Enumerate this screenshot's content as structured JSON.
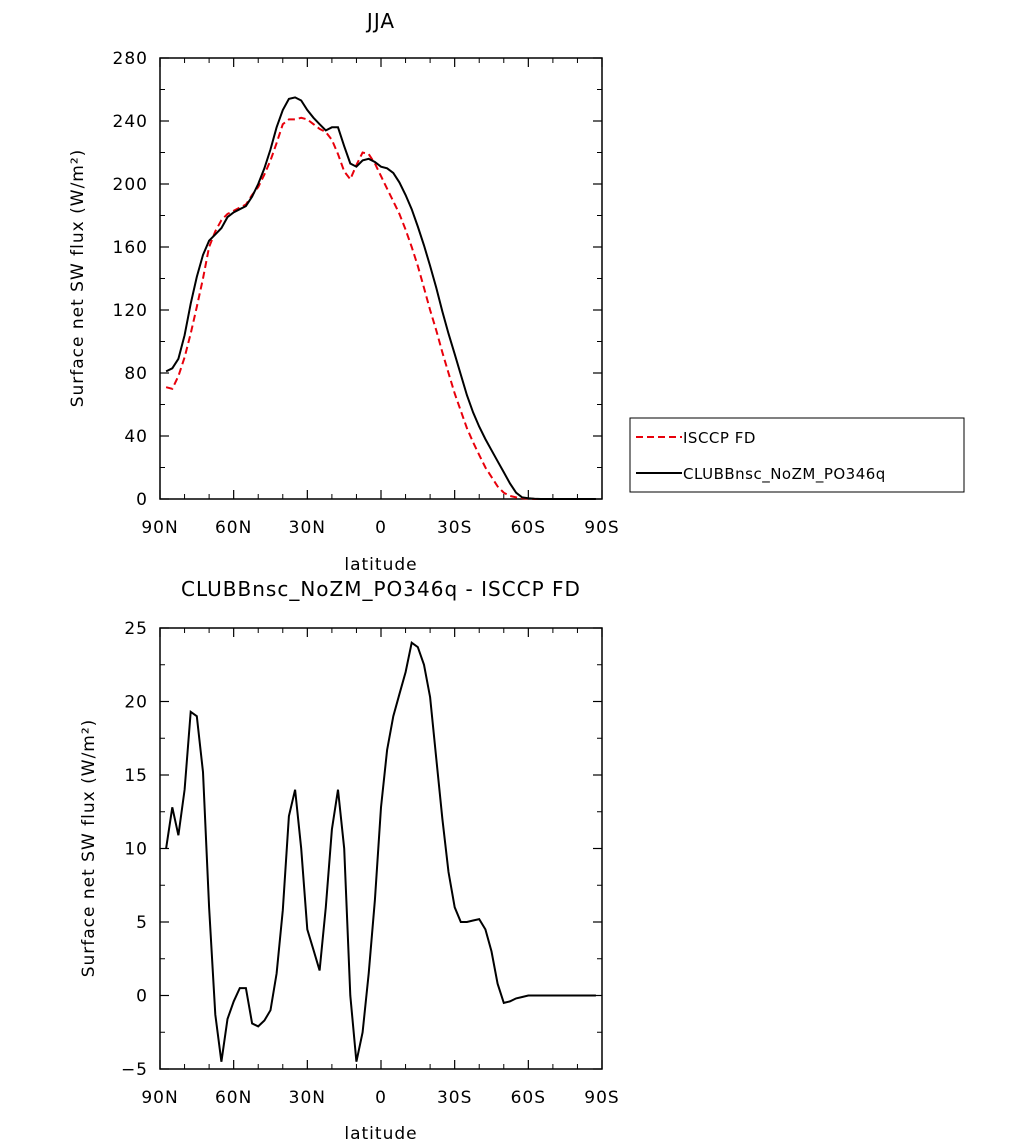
{
  "chart_data": [
    {
      "type": "line",
      "title": "JJA",
      "xlabel": "latitude",
      "ylabel": "Surface net SW flux (W/m²)",
      "xlim": [
        -90,
        90
      ],
      "ylim": [
        0,
        280
      ],
      "xticks": [
        -90,
        -60,
        -30,
        0,
        30,
        60,
        90
      ],
      "xtick_labels": [
        "90N",
        "60N",
        "30N",
        "0",
        "30S",
        "60S",
        "90S"
      ],
      "yticks": [
        0,
        40,
        80,
        120,
        160,
        200,
        240,
        280
      ],
      "ytick_labels": [
        "0",
        "40",
        "80",
        "120",
        "160",
        "200",
        "240",
        "280"
      ],
      "grid": false,
      "legend_position": "right",
      "series": [
        {
          "name": "ISCCP FD",
          "color": "#e8000b",
          "dash": "dashed",
          "x": [
            -87.5,
            -85,
            -82.5,
            -80,
            -77.5,
            -75,
            -72.5,
            -70,
            -67.5,
            -65,
            -62.5,
            -60,
            -57.5,
            -55,
            -52.5,
            -50,
            -47.5,
            -45,
            -42.5,
            -40,
            -37.5,
            -35,
            -32.5,
            -30,
            -27.5,
            -25,
            -22.5,
            -20,
            -17.5,
            -15,
            -12.5,
            -10,
            -7.5,
            -5,
            -2.5,
            0,
            2.5,
            5,
            7.5,
            10,
            12.5,
            15,
            17.5,
            20,
            22.5,
            25,
            27.5,
            30,
            32.5,
            35,
            37.5,
            40,
            42.5,
            45,
            47.5,
            50,
            52.5,
            55,
            57.5,
            60,
            62.5,
            65,
            67.5,
            70,
            72.5,
            75,
            77.5,
            80,
            82.5,
            85,
            87.5
          ],
          "y": [
            71,
            70,
            78,
            90,
            105,
            122,
            140,
            160,
            170,
            177,
            181,
            183,
            185,
            187,
            193,
            198,
            206,
            215,
            226,
            238,
            241,
            241,
            242,
            241,
            238,
            235,
            233,
            228,
            219,
            208,
            203,
            212,
            220,
            219,
            213,
            205,
            197,
            189,
            181,
            171,
            160,
            148,
            134,
            120,
            107,
            93,
            80,
            67,
            56,
            45,
            36,
            28,
            20,
            14,
            8,
            4,
            2,
            1,
            0.5,
            0.2,
            0,
            0,
            0,
            0,
            0,
            0,
            0,
            0,
            0,
            0,
            0
          ]
        },
        {
          "name": "CLUBBnsc_NoZM_PO346q",
          "color": "#000000",
          "dash": "solid",
          "x": [
            -87.5,
            -85,
            -82.5,
            -80,
            -77.5,
            -75,
            -72.5,
            -70,
            -67.5,
            -65,
            -62.5,
            -60,
            -57.5,
            -55,
            -52.5,
            -50,
            -47.5,
            -45,
            -42.5,
            -40,
            -37.5,
            -35,
            -32.5,
            -30,
            -27.5,
            -25,
            -22.5,
            -20,
            -17.5,
            -15,
            -12.5,
            -10,
            -7.5,
            -5,
            -2.5,
            0,
            2.5,
            5,
            7.5,
            10,
            12.5,
            15,
            17.5,
            20,
            22.5,
            25,
            27.5,
            30,
            32.5,
            35,
            37.5,
            40,
            42.5,
            45,
            47.5,
            50,
            52.5,
            55,
            57.5,
            60,
            62.5,
            65,
            67.5,
            70,
            72.5,
            75,
            77.5,
            80,
            82.5,
            85,
            87.5
          ],
          "y": [
            81,
            83,
            89,
            104,
            124,
            141,
            155,
            164,
            168,
            172,
            179,
            182,
            184,
            186,
            192,
            200,
            210,
            222,
            236,
            247,
            254,
            255,
            253,
            247,
            242,
            238,
            234,
            236,
            236,
            224,
            213,
            211,
            215,
            216,
            214,
            211,
            210,
            207,
            201,
            193,
            184,
            173,
            161,
            148,
            134,
            119,
            105,
            92,
            79,
            66,
            55,
            46,
            38,
            31,
            24,
            17,
            10,
            4,
            1,
            0.5,
            0.2,
            0,
            0,
            0,
            0,
            0,
            0,
            0,
            0,
            0,
            0
          ]
        }
      ]
    },
    {
      "type": "line",
      "title": "CLUBBnsc_NoZM_PO346q - ISCCP FD",
      "xlabel": "latitude",
      "ylabel": "Surface net SW flux (W/m²)",
      "xlim": [
        -90,
        90
      ],
      "ylim": [
        -5,
        25
      ],
      "xticks": [
        -90,
        -60,
        -30,
        0,
        30,
        60,
        90
      ],
      "xtick_labels": [
        "90N",
        "60N",
        "30N",
        "0",
        "30S",
        "60S",
        "90S"
      ],
      "yticks": [
        -5,
        0,
        5,
        10,
        15,
        20,
        25
      ],
      "ytick_labels": [
        "−5",
        "0",
        "5",
        "10",
        "15",
        "20",
        "25"
      ],
      "grid": false,
      "series": [
        {
          "color": "#000000",
          "dash": "solid",
          "x": [
            -87.5,
            -85,
            -82.5,
            -80,
            -77.5,
            -75,
            -72.5,
            -70,
            -67.5,
            -65,
            -62.5,
            -60,
            -57.5,
            -55,
            -52.5,
            -50,
            -47.5,
            -45,
            -42.5,
            -40,
            -37.5,
            -35,
            -32.5,
            -30,
            -27.5,
            -25,
            -22.5,
            -20,
            -17.5,
            -15,
            -12.5,
            -10,
            -7.5,
            -5,
            -2.5,
            0,
            2.5,
            5,
            7.5,
            10,
            12.5,
            15,
            17.5,
            20,
            22.5,
            25,
            27.5,
            30,
            32.5,
            35,
            37.5,
            40,
            42.5,
            45,
            47.5,
            50,
            52.5,
            55,
            57.5,
            60,
            62.5,
            65,
            67.5,
            70,
            72.5,
            75,
            77.5,
            80,
            82.5,
            85,
            87.5
          ],
          "y": [
            10,
            12.8,
            10.9,
            14,
            19.3,
            19,
            15.2,
            6,
            -1.3,
            -4.5,
            -1.6,
            -0.4,
            0.5,
            0.5,
            -1.9,
            -2.1,
            -1.7,
            -1,
            1.5,
            5.8,
            12.2,
            14,
            10,
            4.5,
            3.1,
            1.7,
            6,
            11.3,
            14,
            10,
            0,
            -4.5,
            -2.5,
            1.5,
            6.5,
            12.8,
            16.7,
            19,
            20.5,
            22,
            24,
            23.7,
            22.5,
            20.3,
            16.1,
            12,
            8.4,
            6,
            5,
            5,
            5.1,
            5.2,
            4.5,
            3,
            0.8,
            -0.5,
            -0.4,
            -0.2,
            -0.1,
            0,
            0,
            0,
            0,
            0,
            0,
            0,
            0,
            0,
            0,
            0,
            0
          ]
        }
      ]
    }
  ]
}
